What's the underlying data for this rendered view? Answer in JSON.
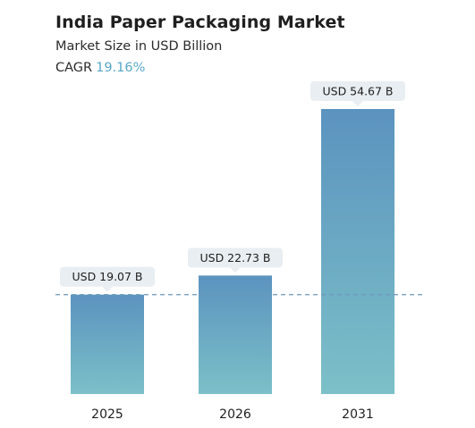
{
  "header": {
    "title": "India Paper Packaging Market",
    "subtitle": "Market Size in USD Billion",
    "cagr_label": "CAGR",
    "cagr_value": "19.16%"
  },
  "colors": {
    "bar_top": "#5b93bf",
    "bar_bottom": "#7cc0c8",
    "label_bg": "#e8eef2",
    "reference_line": "#6b98b8",
    "accent": "#5aa7c8"
  },
  "chart_data": {
    "type": "bar",
    "title": "India Paper Packaging Market",
    "subtitle": "Market Size in USD Billion",
    "categories": [
      "2025",
      "2026",
      "2031"
    ],
    "values": [
      19.07,
      22.73,
      54.67
    ],
    "data_labels": [
      "USD 19.07 B",
      "USD 22.73 B",
      "USD 54.67 B"
    ],
    "reference_line_value": 19.07,
    "ylim": [
      0,
      54.67
    ],
    "grid": false,
    "legend": "none"
  }
}
